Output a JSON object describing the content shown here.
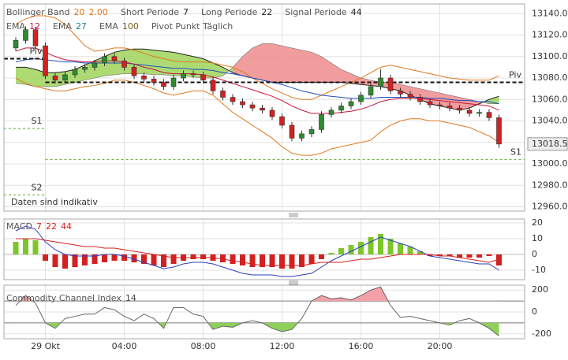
{
  "header": {
    "rows": [
      [
        {
          "text": "Bollinger Band"
        },
        {
          "text": "20",
          "color": "#e0781e"
        },
        {
          "text": "2.00",
          "color": "#e0781e"
        },
        {
          "text": "Short Periode"
        },
        {
          "text": "7",
          "color": "#222"
        },
        {
          "text": "Long Periode"
        },
        {
          "text": "22",
          "color": "#222"
        },
        {
          "text": "Signal Periode"
        },
        {
          "text": "44",
          "color": "#222"
        }
      ],
      [
        {
          "text": "EMA"
        },
        {
          "text": "12",
          "color": "#c8143c"
        },
        {
          "text": "EMA"
        },
        {
          "text": "27",
          "color": "#1f7f9a"
        },
        {
          "text": "EMA"
        },
        {
          "text": "100",
          "color": "#7a5a14"
        },
        {
          "text": "Pivot Punkt Täglich"
        }
      ]
    ]
  },
  "chart_data": [
    {
      "type": "candlestick",
      "note": "Daten sind indikativ",
      "up_color": "#2e8b2e",
      "down_color": "#d42020",
      "x": [
        -1.5,
        -1,
        -0.5,
        0,
        0.5,
        1,
        1.5,
        2,
        2.5,
        3,
        3.5,
        4,
        4.5,
        5,
        5.5,
        6,
        6.5,
        7,
        7.5,
        8,
        8.5,
        9,
        9.5,
        10,
        10.5,
        11,
        11.5,
        12,
        12.5,
        13,
        13.5,
        14,
        14.5,
        15,
        15.5,
        16,
        16.5,
        17,
        17.5,
        18,
        18.5,
        19,
        19.5,
        20,
        20.5,
        21,
        21.5,
        22,
        22.5,
        23
      ],
      "open": [
        13108,
        13115,
        13125,
        13110,
        13082,
        13078,
        13083,
        13088,
        13090,
        13094,
        13100,
        13096,
        13090,
        13082,
        13079,
        13076,
        13072,
        13080,
        13084,
        13083,
        13078,
        13068,
        13062,
        13058,
        13055,
        13052,
        13050,
        13044,
        13036,
        13024,
        13028,
        13032,
        13046,
        13050,
        13054,
        13058,
        13064,
        13072,
        13080,
        13068,
        13065,
        13062,
        13058,
        13055,
        13054,
        13052,
        13050,
        13047,
        13048,
        13043
      ],
      "high": [
        13118,
        13128,
        13128,
        13113,
        13085,
        13086,
        13091,
        13093,
        13097,
        13103,
        13103,
        13099,
        13093,
        13085,
        13082,
        13079,
        13083,
        13087,
        13087,
        13086,
        13081,
        13071,
        13065,
        13061,
        13058,
        13055,
        13053,
        13047,
        13039,
        13031,
        13035,
        13049,
        13053,
        13057,
        13061,
        13067,
        13075,
        13088,
        13083,
        13071,
        13068,
        13065,
        13061,
        13058,
        13057,
        13055,
        13053,
        13051,
        13051,
        13046
      ],
      "low": [
        13105,
        13112,
        13107,
        13079,
        13075,
        13075,
        13080,
        13085,
        13087,
        13091,
        13093,
        13087,
        13079,
        13076,
        13073,
        13069,
        13069,
        13077,
        13080,
        13075,
        13065,
        13059,
        13055,
        13052,
        13049,
        13047,
        13041,
        13033,
        13021,
        13021,
        13025,
        13029,
        13043,
        13047,
        13051,
        13055,
        13061,
        13069,
        13065,
        13062,
        13059,
        13055,
        13052,
        13051,
        13049,
        13047,
        13044,
        13044,
        13040,
        13015
      ],
      "close": [
        13115,
        13125,
        13110,
        13082,
        13078,
        13083,
        13088,
        13090,
        13094,
        13100,
        13096,
        13090,
        13082,
        13079,
        13076,
        13072,
        13080,
        13084,
        13083,
        13078,
        13068,
        13062,
        13058,
        13055,
        13052,
        13050,
        13044,
        13036,
        13024,
        13028,
        13032,
        13046,
        13050,
        13054,
        13058,
        13064,
        13072,
        13080,
        13068,
        13065,
        13062,
        13058,
        13055,
        13054,
        13052,
        13050,
        13047,
        13048,
        13043,
        13018.5
      ],
      "cloud": {
        "up_color": "#9fd45a",
        "down_color": "#f08c8c",
        "span_a": [
          13090,
          13090,
          13088,
          13085,
          13085,
          13086,
          13088,
          13092,
          13096,
          13100,
          13104,
          13106,
          13107,
          13107,
          13106,
          13105,
          13104,
          13102,
          13100,
          13098,
          13094,
          13090,
          13085,
          13082,
          13080,
          13078,
          13076,
          13076,
          13076,
          13076,
          13076,
          13076,
          13076,
          13076,
          13075,
          13074,
          13073,
          13072,
          13070,
          13068,
          13064,
          13060,
          13056,
          13054,
          13052,
          13050,
          13052,
          13056,
          13060,
          13063
        ],
        "span_b": [
          13075,
          13074,
          13072,
          13072,
          13072,
          13074,
          13076,
          13078,
          13080,
          13082,
          13083,
          13084,
          13084,
          13084,
          13083,
          13083,
          13082,
          13082,
          13081,
          13080,
          13080,
          13082,
          13090,
          13100,
          13108,
          13112,
          13112,
          13110,
          13108,
          13106,
          13104,
          13100,
          13094,
          13088,
          13084,
          13080,
          13078,
          13076,
          13076,
          13074,
          13072,
          13070,
          13068,
          13066,
          13064,
          13062,
          13060,
          13058,
          13056,
          13056
        ]
      },
      "series": [
        {
          "color": "#e0781e",
          "values": [
            13130,
            13135,
            13138,
            13138,
            13136,
            13130,
            13120,
            13110,
            13105,
            13106,
            13108,
            13108,
            13106,
            13103,
            13100,
            13098,
            13096,
            13095,
            13095,
            13095,
            13094,
            13092,
            13090,
            13086,
            13080,
            13075,
            13070,
            13066,
            13062,
            13060,
            13060,
            13064,
            13068,
            13072,
            13076,
            13080,
            13085,
            13090,
            13092,
            13090,
            13088,
            13086,
            13084,
            13082,
            13080,
            13079,
            13078,
            13078,
            13078,
            13082
          ]
        },
        {
          "color": "#e0781e",
          "values": [
            13080,
            13075,
            13072,
            13070,
            13068,
            13068,
            13070,
            13072,
            13073,
            13075,
            13078,
            13078,
            13076,
            13073,
            13070,
            13066,
            13064,
            13066,
            13068,
            13068,
            13064,
            13056,
            13048,
            13042,
            13036,
            13030,
            13024,
            13016,
            13010,
            13008,
            13008,
            13010,
            13014,
            13016,
            13018,
            13020,
            13022,
            13030,
            13036,
            13040,
            13042,
            13042,
            13040,
            13040,
            13038,
            13036,
            13034,
            13030,
            13026,
            13020
          ]
        },
        {
          "color": "#1f4fbf",
          "values": [
            13095,
            13097,
            13098,
            13097,
            13096,
            13095,
            13095,
            13094,
            13094,
            13094,
            13094,
            13094,
            13093,
            13092,
            13091,
            13090,
            13089,
            13089,
            13088,
            13088,
            13087,
            13085,
            13084,
            13082,
            13080,
            13078,
            13076,
            13074,
            13071,
            13068,
            13066,
            13064,
            13063,
            13062,
            13061,
            13061,
            13061,
            13062,
            13062,
            13062,
            13062,
            13062,
            13061,
            13061,
            13060,
            13059,
            13059,
            13058,
            13058,
            13056
          ]
        },
        {
          "color": "#c8143c",
          "values": [
            13105,
            13108,
            13108,
            13104,
            13100,
            13097,
            13096,
            13095,
            13095,
            13096,
            13096,
            13095,
            13093,
            13090,
            13088,
            13085,
            13084,
            13084,
            13084,
            13083,
            13081,
            13078,
            13075,
            13072,
            13069,
            13066,
            13063,
            13059,
            13054,
            13050,
            13047,
            13047,
            13047,
            13048,
            13049,
            13051,
            13054,
            13058,
            13060,
            13061,
            13061,
            13061,
            13060,
            13059,
            13058,
            13057,
            13056,
            13055,
            13054,
            13050
          ]
        }
      ],
      "pivots": [
        {
          "label": "Piv",
          "value": 13098,
          "from": -2.1,
          "to": 0,
          "color": "#111"
        },
        {
          "label": "S1",
          "value": 13033,
          "from": -2.1,
          "to": 0,
          "color": "#5aa82a"
        },
        {
          "label": "S2",
          "value": 12971,
          "from": -2.1,
          "to": 0,
          "color": "#5aa82a"
        },
        {
          "label": "Piv",
          "value": 13076,
          "from": 0,
          "to": 24.3,
          "color": "#111"
        },
        {
          "label": "S1",
          "value": 13004,
          "from": 0,
          "to": 24.3,
          "color": "#5aa82a"
        }
      ],
      "last_price": 13018.5,
      "xlim": [
        -2.1,
        24.3
      ],
      "ylim": [
        12956,
        13149
      ],
      "yticks": [
        {
          "value": 12960,
          "label": "12960.0"
        },
        {
          "value": 12980,
          "label": "12980.0"
        },
        {
          "value": 13000,
          "label": "13000.0"
        },
        {
          "value": 13020,
          "label": "13020.0"
        },
        {
          "value": 13040,
          "label": "13040.0"
        },
        {
          "value": 13060,
          "label": "13060.0"
        },
        {
          "value": 13080,
          "label": "13080.0"
        },
        {
          "value": 13100,
          "label": "13100.0"
        },
        {
          "value": 13120,
          "label": "13120.0"
        },
        {
          "value": 13140,
          "label": "13140.0"
        }
      ]
    },
    {
      "type": "macd",
      "title": [
        {
          "text": "MACD"
        },
        {
          "text": "7",
          "color": "#d42020"
        },
        {
          "text": "22",
          "color": "#d42020"
        },
        {
          "text": "44",
          "color": "#d42020"
        }
      ],
      "up_color": "#7cc62a",
      "down_color": "#d42020",
      "macd_color": "#2a3fc0",
      "signal_color": "#d42020",
      "x": [
        -1.5,
        -1,
        -0.5,
        0,
        0.5,
        1,
        1.5,
        2,
        2.5,
        3,
        3.5,
        4,
        4.5,
        5,
        5.5,
        6,
        6.5,
        7,
        7.5,
        8,
        8.5,
        9,
        9.5,
        10,
        10.5,
        11,
        11.5,
        12,
        12.5,
        13,
        13.5,
        14,
        14.5,
        15,
        15.5,
        16,
        16.5,
        17,
        17.5,
        18,
        18.5,
        19,
        19.5,
        20,
        20.5,
        21,
        21.5,
        22,
        22.5,
        23
      ],
      "histogram": [
        8,
        10,
        9,
        -4,
        -8,
        -9,
        -8,
        -7,
        -6,
        -5,
        -4,
        -4,
        -5,
        -6,
        -7,
        -8,
        -6,
        -4,
        -3,
        -3,
        -4,
        -5,
        -6,
        -7,
        -8,
        -8,
        -8,
        -9,
        -9,
        -8,
        -6,
        -3,
        1,
        4,
        6,
        8,
        11,
        13,
        10,
        7,
        5,
        2,
        -1,
        -1,
        -1,
        -2,
        -2,
        -2,
        -1,
        -7
      ],
      "macd": [
        15,
        18,
        16,
        8,
        3,
        0,
        -1,
        -1,
        -1,
        0,
        0,
        -1,
        -3,
        -5,
        -7,
        -9,
        -8,
        -6,
        -5,
        -5,
        -6,
        -8,
        -10,
        -12,
        -13,
        -13,
        -13,
        -14,
        -14,
        -13,
        -12,
        -8,
        -4,
        -1,
        2,
        5,
        8,
        11,
        9,
        7,
        5,
        2,
        -1,
        -2,
        -3,
        -4,
        -5,
        -6,
        -6,
        -10
      ],
      "signal": [
        10,
        10,
        10,
        9,
        8,
        7,
        6,
        5,
        5,
        4,
        4,
        3,
        2,
        1,
        0,
        -1,
        -2,
        -2,
        -2,
        -2,
        -2,
        -3,
        -4,
        -5,
        -6,
        -7,
        -7,
        -7,
        -7,
        -7,
        -6,
        -5,
        -5,
        -5,
        -4,
        -3,
        -3,
        -2,
        -1,
        0,
        0,
        0,
        0,
        -1,
        -1,
        -2,
        -3,
        -4,
        -5,
        -3
      ],
      "xlim": [
        -2.1,
        24.3
      ],
      "ylim": [
        -16,
        22.5
      ],
      "yticks": [
        20,
        10,
        0,
        -10
      ]
    },
    {
      "type": "cci",
      "title": [
        {
          "text": "Commodity Channel Index"
        },
        {
          "text": "14",
          "color": "#444"
        }
      ],
      "color": "#666",
      "upper_fill": "#f4a0a8",
      "lower_fill": "#8fd05a",
      "levels": [
        100,
        -100
      ],
      "x": [
        -1.5,
        -1,
        -0.5,
        0,
        0.5,
        1,
        1.5,
        2,
        2.5,
        3,
        3.5,
        4,
        4.5,
        5,
        5.5,
        6,
        6.5,
        7,
        7.5,
        8,
        8.5,
        9,
        9.5,
        10,
        10.5,
        11,
        11.5,
        12,
        12.5,
        13,
        13.5,
        14,
        14.5,
        15,
        15.5,
        16,
        16.5,
        17,
        17.5,
        18,
        18.5,
        19,
        19.5,
        20,
        20.5,
        21,
        21.5,
        22,
        22.5,
        23
      ],
      "values": [
        60,
        150,
        80,
        -100,
        -150,
        -60,
        -40,
        -20,
        -20,
        40,
        20,
        -40,
        -80,
        -20,
        -60,
        -150,
        40,
        40,
        -20,
        -40,
        -160,
        -130,
        -140,
        -100,
        -80,
        -100,
        -150,
        -180,
        -160,
        -60,
        100,
        150,
        120,
        130,
        110,
        150,
        200,
        230,
        60,
        -50,
        -40,
        -60,
        -80,
        -100,
        -120,
        -80,
        -60,
        -100,
        -150,
        -220
      ],
      "xlim": [
        -2.1,
        24.3
      ],
      "ylim": [
        -245,
        245
      ],
      "yticks": [
        200,
        0,
        -200
      ],
      "xticks": [
        {
          "value": 0,
          "label": "29 Okt"
        },
        {
          "value": 4,
          "label": "04:00"
        },
        {
          "value": 8,
          "label": "08:00"
        },
        {
          "value": 12,
          "label": "12:00"
        },
        {
          "value": 16,
          "label": "16:00"
        },
        {
          "value": 20,
          "label": "20:00"
        }
      ]
    }
  ]
}
